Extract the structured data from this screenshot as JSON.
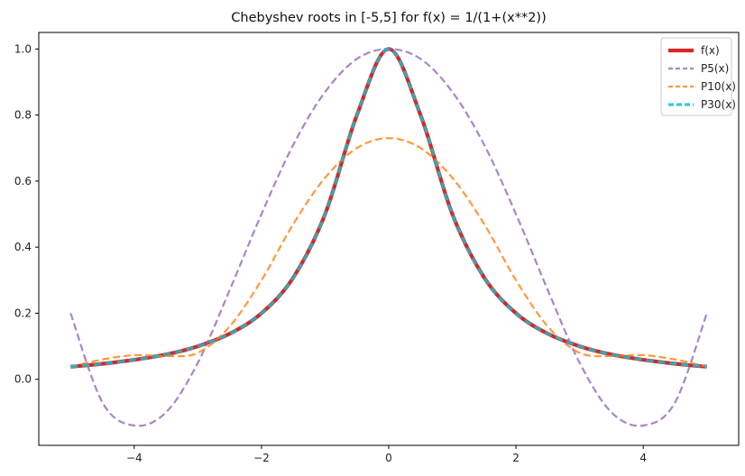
{
  "chart_data": {
    "type": "line",
    "title": "Chebyshev roots in [-5,5] for f(x) = 1/(1+(x**2))",
    "xlabel": "",
    "ylabel": "",
    "xlim": [
      -5.5,
      5.5
    ],
    "ylim": [
      -0.2,
      1.05
    ],
    "xticks": [
      -4,
      -2,
      0,
      2,
      4
    ],
    "xtick_labels": [
      "−4",
      "−2",
      "0",
      "2",
      "4"
    ],
    "yticks": [
      0.0,
      0.2,
      0.4,
      0.6,
      0.8,
      1.0
    ],
    "ytick_labels": [
      "0.0",
      "0.2",
      "0.4",
      "0.6",
      "0.8",
      "1.0"
    ],
    "grid": false,
    "legend_position": "top-right",
    "x": [
      -5,
      -4.5,
      -4,
      -3.5,
      -3,
      -2.5,
      -2,
      -1.5,
      -1,
      -0.5,
      0,
      0.5,
      1,
      1.5,
      2,
      2.5,
      3,
      3.5,
      4,
      4.5,
      5
    ],
    "series": [
      {
        "name": "f(x)",
        "color": "#d62728",
        "style": "solid",
        "values": [
          0.038,
          0.047,
          0.059,
          0.075,
          0.1,
          0.138,
          0.2,
          0.308,
          0.5,
          0.8,
          1.0,
          0.8,
          0.5,
          0.308,
          0.2,
          0.138,
          0.1,
          0.075,
          0.059,
          0.047,
          0.038
        ]
      },
      {
        "name": "P5(x)",
        "color": "#9467bd",
        "style": "dashed",
        "values": [
          0.2,
          -0.07,
          -0.14,
          -0.1,
          0.05,
          0.27,
          0.5,
          0.71,
          0.87,
          0.97,
          1.0,
          0.97,
          0.87,
          0.71,
          0.5,
          0.27,
          0.05,
          -0.1,
          -0.14,
          -0.07,
          0.2
        ]
      },
      {
        "name": "P10(x)",
        "color": "#ff7f0e",
        "style": "dashed",
        "values": [
          0.038,
          0.06,
          0.073,
          0.07,
          0.08,
          0.16,
          0.3,
          0.47,
          0.61,
          0.7,
          0.73,
          0.7,
          0.61,
          0.47,
          0.3,
          0.16,
          0.08,
          0.07,
          0.073,
          0.06,
          0.038
        ]
      },
      {
        "name": "P30(x)",
        "color": "#17becf",
        "style": "dashed",
        "values": [
          0.038,
          0.047,
          0.059,
          0.075,
          0.1,
          0.138,
          0.2,
          0.308,
          0.5,
          0.8,
          1.0,
          0.8,
          0.5,
          0.308,
          0.2,
          0.138,
          0.1,
          0.075,
          0.059,
          0.047,
          0.038
        ]
      }
    ]
  }
}
